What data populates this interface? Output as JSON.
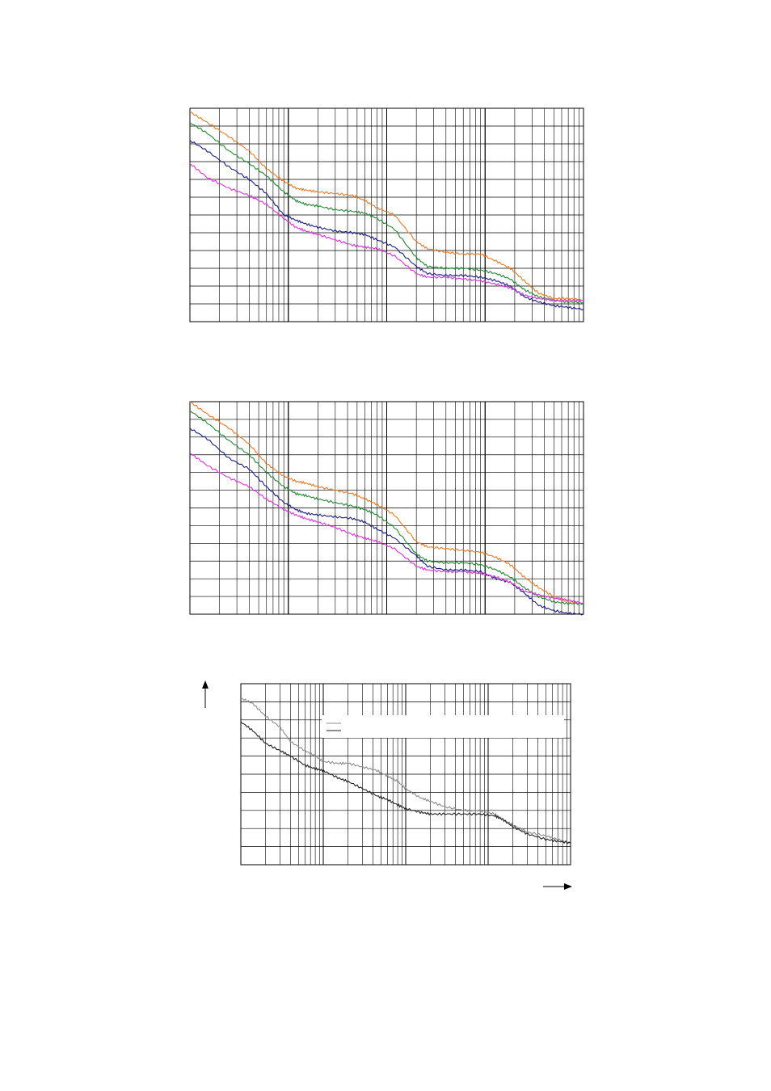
{
  "colors": {
    "grid": "#000000",
    "orange": "#f07820",
    "green": "#208a30",
    "navy": "#1a1a8a",
    "magenta": "#e030e0",
    "dark": "#222222",
    "gray": "#8c8c8c"
  },
  "chart_data": [
    {
      "type": "line",
      "xscale": "log",
      "xlim": [
        1,
        10000
      ],
      "ylim": [
        0,
        12
      ],
      "grid": true,
      "series": [
        {
          "color": "orange",
          "x": [
            1,
            1.5,
            2.5,
            4,
            6,
            9,
            12,
            15,
            20,
            30,
            45,
            60,
            80,
            120,
            200,
            260,
            400,
            600,
            900,
            1300,
            1800,
            2500,
            3500,
            5000,
            7000,
            10000
          ],
          "y": [
            11.8,
            11.2,
            10.4,
            9.6,
            8.6,
            7.9,
            7.5,
            7.4,
            7.3,
            7.2,
            7.1,
            6.8,
            6.4,
            6.0,
            4.5,
            4.1,
            3.9,
            3.8,
            3.8,
            3.4,
            3.0,
            2.3,
            1.6,
            1.3,
            1.3,
            1.2
          ]
        },
        {
          "color": "green",
          "x": [
            1,
            1.5,
            2.5,
            4,
            6,
            9,
            12,
            15,
            20,
            30,
            45,
            60,
            80,
            120,
            200,
            260,
            400,
            600,
            900,
            1300,
            1800,
            2500,
            3500,
            5000,
            7000,
            10000
          ],
          "y": [
            11.2,
            10.6,
            9.6,
            8.9,
            8.2,
            7.3,
            6.8,
            6.6,
            6.5,
            6.3,
            6.2,
            6.1,
            5.8,
            5.2,
            3.6,
            3.1,
            3.0,
            3.0,
            2.9,
            2.7,
            2.4,
            1.8,
            1.4,
            1.2,
            1.1,
            1.1
          ]
        },
        {
          "color": "navy",
          "x": [
            1,
            1.5,
            2.5,
            4,
            6,
            9,
            12,
            15,
            20,
            30,
            45,
            60,
            80,
            120,
            200,
            260,
            400,
            600,
            900,
            1300,
            1800,
            2500,
            3500,
            5000,
            7000,
            10000
          ],
          "y": [
            10.2,
            9.6,
            8.7,
            8.0,
            7.2,
            6.0,
            5.7,
            5.5,
            5.3,
            5.1,
            5.0,
            4.9,
            4.6,
            4.2,
            3.1,
            2.7,
            2.6,
            2.6,
            2.5,
            2.3,
            2.0,
            1.4,
            1.1,
            0.9,
            0.8,
            0.7
          ]
        },
        {
          "color": "magenta",
          "x": [
            1,
            1.5,
            2.5,
            4,
            6,
            9,
            12,
            15,
            20,
            30,
            45,
            60,
            80,
            120,
            200,
            260,
            400,
            600,
            900,
            1300,
            1800,
            2500,
            3500,
            5000,
            7000,
            10000
          ],
          "y": [
            8.9,
            8.1,
            7.5,
            7.1,
            6.6,
            5.8,
            5.3,
            5.1,
            4.9,
            4.6,
            4.3,
            4.2,
            4.1,
            3.7,
            2.7,
            2.5,
            2.5,
            2.4,
            2.3,
            2.1,
            1.9,
            1.5,
            1.3,
            1.2,
            1.2,
            1.2
          ]
        }
      ]
    },
    {
      "type": "line",
      "xscale": "log",
      "xlim": [
        1,
        10000
      ],
      "ylim": [
        0,
        12
      ],
      "grid": true,
      "series": [
        {
          "color": "orange",
          "x": [
            1,
            1.5,
            2.5,
            4,
            6,
            9,
            12,
            15,
            20,
            30,
            45,
            60,
            80,
            120,
            200,
            260,
            400,
            600,
            900,
            1300,
            1800,
            2500,
            3500,
            5000,
            7000,
            10000
          ],
          "y": [
            12.0,
            11.3,
            10.5,
            9.6,
            8.5,
            7.8,
            7.5,
            7.4,
            7.2,
            7.0,
            6.8,
            6.5,
            6.2,
            5.6,
            4.1,
            3.8,
            3.7,
            3.6,
            3.5,
            3.2,
            2.8,
            2.1,
            1.5,
            1.0,
            0.7,
            0.6
          ]
        },
        {
          "color": "green",
          "x": [
            1,
            1.5,
            2.5,
            4,
            6,
            9,
            12,
            15,
            20,
            30,
            45,
            60,
            80,
            120,
            200,
            260,
            400,
            600,
            900,
            1300,
            1800,
            2500,
            3500,
            5000,
            7000,
            10000
          ],
          "y": [
            11.5,
            10.8,
            9.8,
            9.0,
            8.0,
            7.2,
            6.8,
            6.7,
            6.5,
            6.3,
            6.1,
            5.9,
            5.6,
            4.9,
            3.4,
            3.0,
            2.9,
            2.9,
            2.8,
            2.5,
            2.1,
            1.5,
            1.0,
            0.7,
            0.6,
            0.6
          ]
        },
        {
          "color": "navy",
          "x": [
            1,
            1.5,
            2.5,
            4,
            6,
            9,
            12,
            15,
            20,
            30,
            45,
            60,
            80,
            120,
            200,
            260,
            400,
            600,
            900,
            1300,
            1800,
            2500,
            3500,
            5000,
            7000,
            10000
          ],
          "y": [
            10.5,
            9.9,
            8.8,
            8.2,
            7.2,
            6.3,
            5.9,
            5.7,
            5.6,
            5.5,
            5.4,
            5.2,
            4.8,
            4.3,
            3.3,
            2.7,
            2.5,
            2.5,
            2.4,
            2.0,
            1.8,
            1.2,
            0.5,
            0.2,
            0.05,
            0.0
          ]
        },
        {
          "color": "magenta",
          "x": [
            1,
            1.5,
            2.5,
            4,
            6,
            9,
            12,
            15,
            20,
            30,
            45,
            60,
            80,
            120,
            200,
            260,
            400,
            600,
            900,
            1300,
            1800,
            2500,
            3500,
            5000,
            7000,
            10000
          ],
          "y": [
            9.1,
            8.4,
            7.7,
            7.2,
            6.5,
            5.9,
            5.6,
            5.4,
            5.2,
            4.9,
            4.5,
            4.3,
            4.1,
            3.7,
            2.7,
            2.5,
            2.4,
            2.4,
            2.3,
            2.1,
            1.8,
            1.3,
            1.1,
            0.9,
            0.8,
            0.6
          ]
        }
      ]
    },
    {
      "type": "line",
      "xscale": "log",
      "xlim": [
        1,
        10000
      ],
      "ylim": [
        0,
        10
      ],
      "grid": true,
      "legend": "top-right",
      "series": [
        {
          "color": "gray",
          "x": [
            1,
            1.4,
            2,
            3,
            4,
            6,
            8,
            10,
            15,
            20,
            30,
            45,
            60,
            80,
            100,
            150,
            200,
            300,
            500,
            800,
            1200,
            1500,
            2000,
            3000,
            5000,
            7000,
            10000
          ],
          "y": [
            9.2,
            8.9,
            8.2,
            7.6,
            6.8,
            6.3,
            6.0,
            5.7,
            5.6,
            5.6,
            5.4,
            5.2,
            4.9,
            4.6,
            4.2,
            3.7,
            3.5,
            3.2,
            3.0,
            3.0,
            2.8,
            2.5,
            2.2,
            1.8,
            1.6,
            1.4,
            1.2
          ]
        },
        {
          "color": "dark",
          "x": [
            1,
            1.4,
            2,
            3,
            4,
            6,
            8,
            10,
            15,
            20,
            30,
            45,
            60,
            80,
            100,
            150,
            200,
            300,
            500,
            800,
            1200,
            1500,
            2000,
            3000,
            5000,
            7000,
            10000
          ],
          "y": [
            7.9,
            7.4,
            6.7,
            6.3,
            6.0,
            5.5,
            5.3,
            5.2,
            4.8,
            4.6,
            4.2,
            3.8,
            3.6,
            3.3,
            3.1,
            2.9,
            2.8,
            2.8,
            2.8,
            2.8,
            2.7,
            2.5,
            2.1,
            1.7,
            1.4,
            1.3,
            1.2
          ]
        }
      ]
    }
  ]
}
